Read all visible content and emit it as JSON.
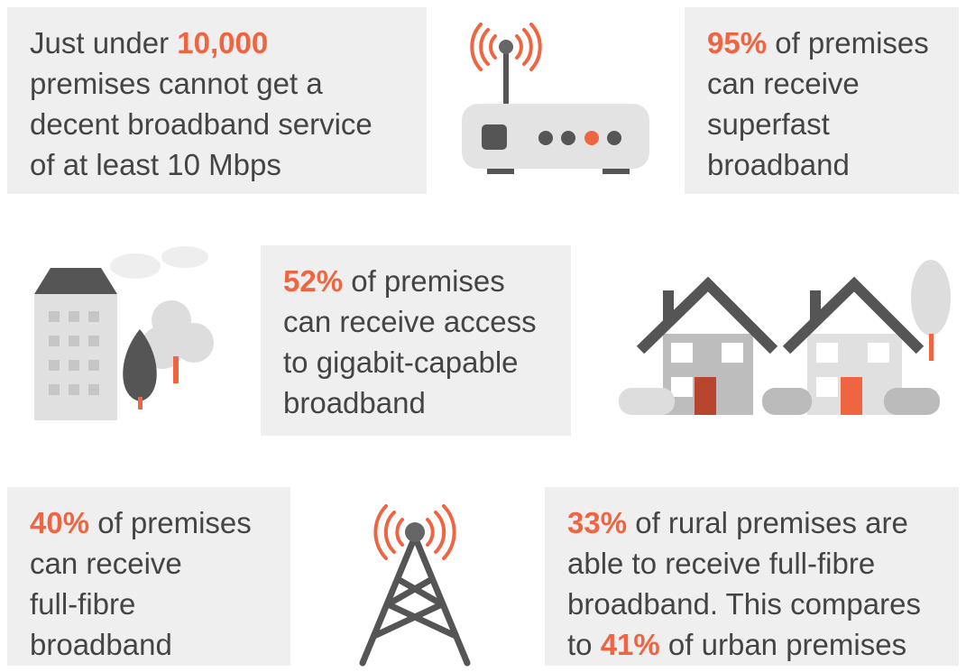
{
  "accent_color": "#ef6441",
  "boxes": [
    {
      "lines": [
        [
          {
            "text": "Just under "
          },
          {
            "text": "10,000",
            "accent": true
          }
        ],
        [
          {
            "text": "premises cannot get a"
          }
        ],
        [
          {
            "text": "decent broadband service"
          }
        ],
        [
          {
            "text": "of at least 10 Mbps"
          }
        ]
      ]
    },
    {
      "lines": [
        [
          {
            "text": "95%",
            "accent": true
          },
          {
            "text": " of premises"
          }
        ],
        [
          {
            "text": "can receive"
          }
        ],
        [
          {
            "text": "superfast"
          }
        ],
        [
          {
            "text": "broadband"
          }
        ]
      ]
    },
    {
      "lines": [
        [
          {
            "text": "52%",
            "accent": true
          },
          {
            "text": " of premises"
          }
        ],
        [
          {
            "text": "can receive access"
          }
        ],
        [
          {
            "text": "to gigabit-capable"
          }
        ],
        [
          {
            "text": "broadband"
          }
        ]
      ]
    },
    {
      "lines": [
        [
          {
            "text": "40%",
            "accent": true
          },
          {
            "text": " of premises"
          }
        ],
        [
          {
            "text": "can receive"
          }
        ],
        [
          {
            "text": "full-fibre"
          }
        ],
        [
          {
            "text": "broadband"
          }
        ]
      ]
    },
    {
      "lines": [
        [
          {
            "text": "33%",
            "accent": true
          },
          {
            "text": " of rural premises are"
          }
        ],
        [
          {
            "text": "able to receive full-fibre"
          }
        ],
        [
          {
            "text": "broadband. This compares"
          }
        ],
        [
          {
            "text": "to "
          },
          {
            "text": "41%",
            "accent": true
          },
          {
            "text": " of urban premises"
          }
        ]
      ]
    }
  ]
}
